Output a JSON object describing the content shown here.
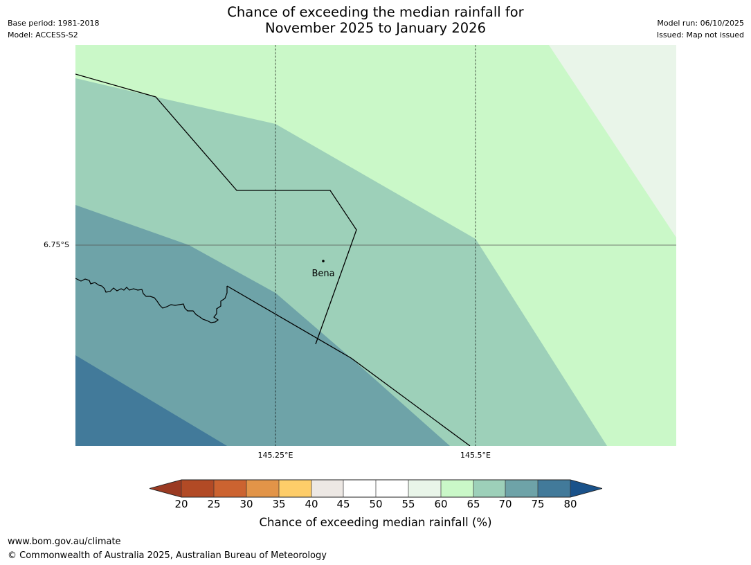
{
  "title": {
    "line1": "Chance of exceeding the median rainfall for",
    "line2": "November 2025 to January 2026"
  },
  "meta_left": {
    "base_period": "Base period: 1981-2018",
    "model": "Model: ACCESS-S2"
  },
  "meta_right": {
    "model_run": "Model run: 06/10/2025",
    "issued": "Issued: Map not issued"
  },
  "map": {
    "gridlines": {
      "latitude_labels": [
        "6.75°S"
      ],
      "longitude_labels": [
        "145.25°E",
        "145.5°E"
      ]
    },
    "places": [
      {
        "name": "Bena"
      }
    ]
  },
  "colorbar": {
    "label": "Chance of exceeding median rainfall (%)",
    "ticks": [
      "20",
      "25",
      "30",
      "35",
      "40",
      "45",
      "50",
      "55",
      "60",
      "65",
      "70",
      "75",
      "80"
    ],
    "colors": {
      "below_20": "#9b3a22",
      "20_25": "#b24a25",
      "25_30": "#cc6330",
      "30_35": "#e29448",
      "35_40": "#fecd69",
      "40_45": "#ede8e4",
      "45_50": "#ffffff",
      "50_55": "#ffffff",
      "55_60": "#e9f5e9",
      "60_65": "#caf8c8",
      "65_70": "#9dd0b9",
      "70_75": "#6ea3a8",
      "75_80": "#427a9a",
      "above_80": "#1a528a"
    }
  },
  "footer": {
    "url": "www.bom.gov.au/climate",
    "copyright": "© Commonwealth of Australia 2025, Australian Bureau of Meteorology"
  }
}
